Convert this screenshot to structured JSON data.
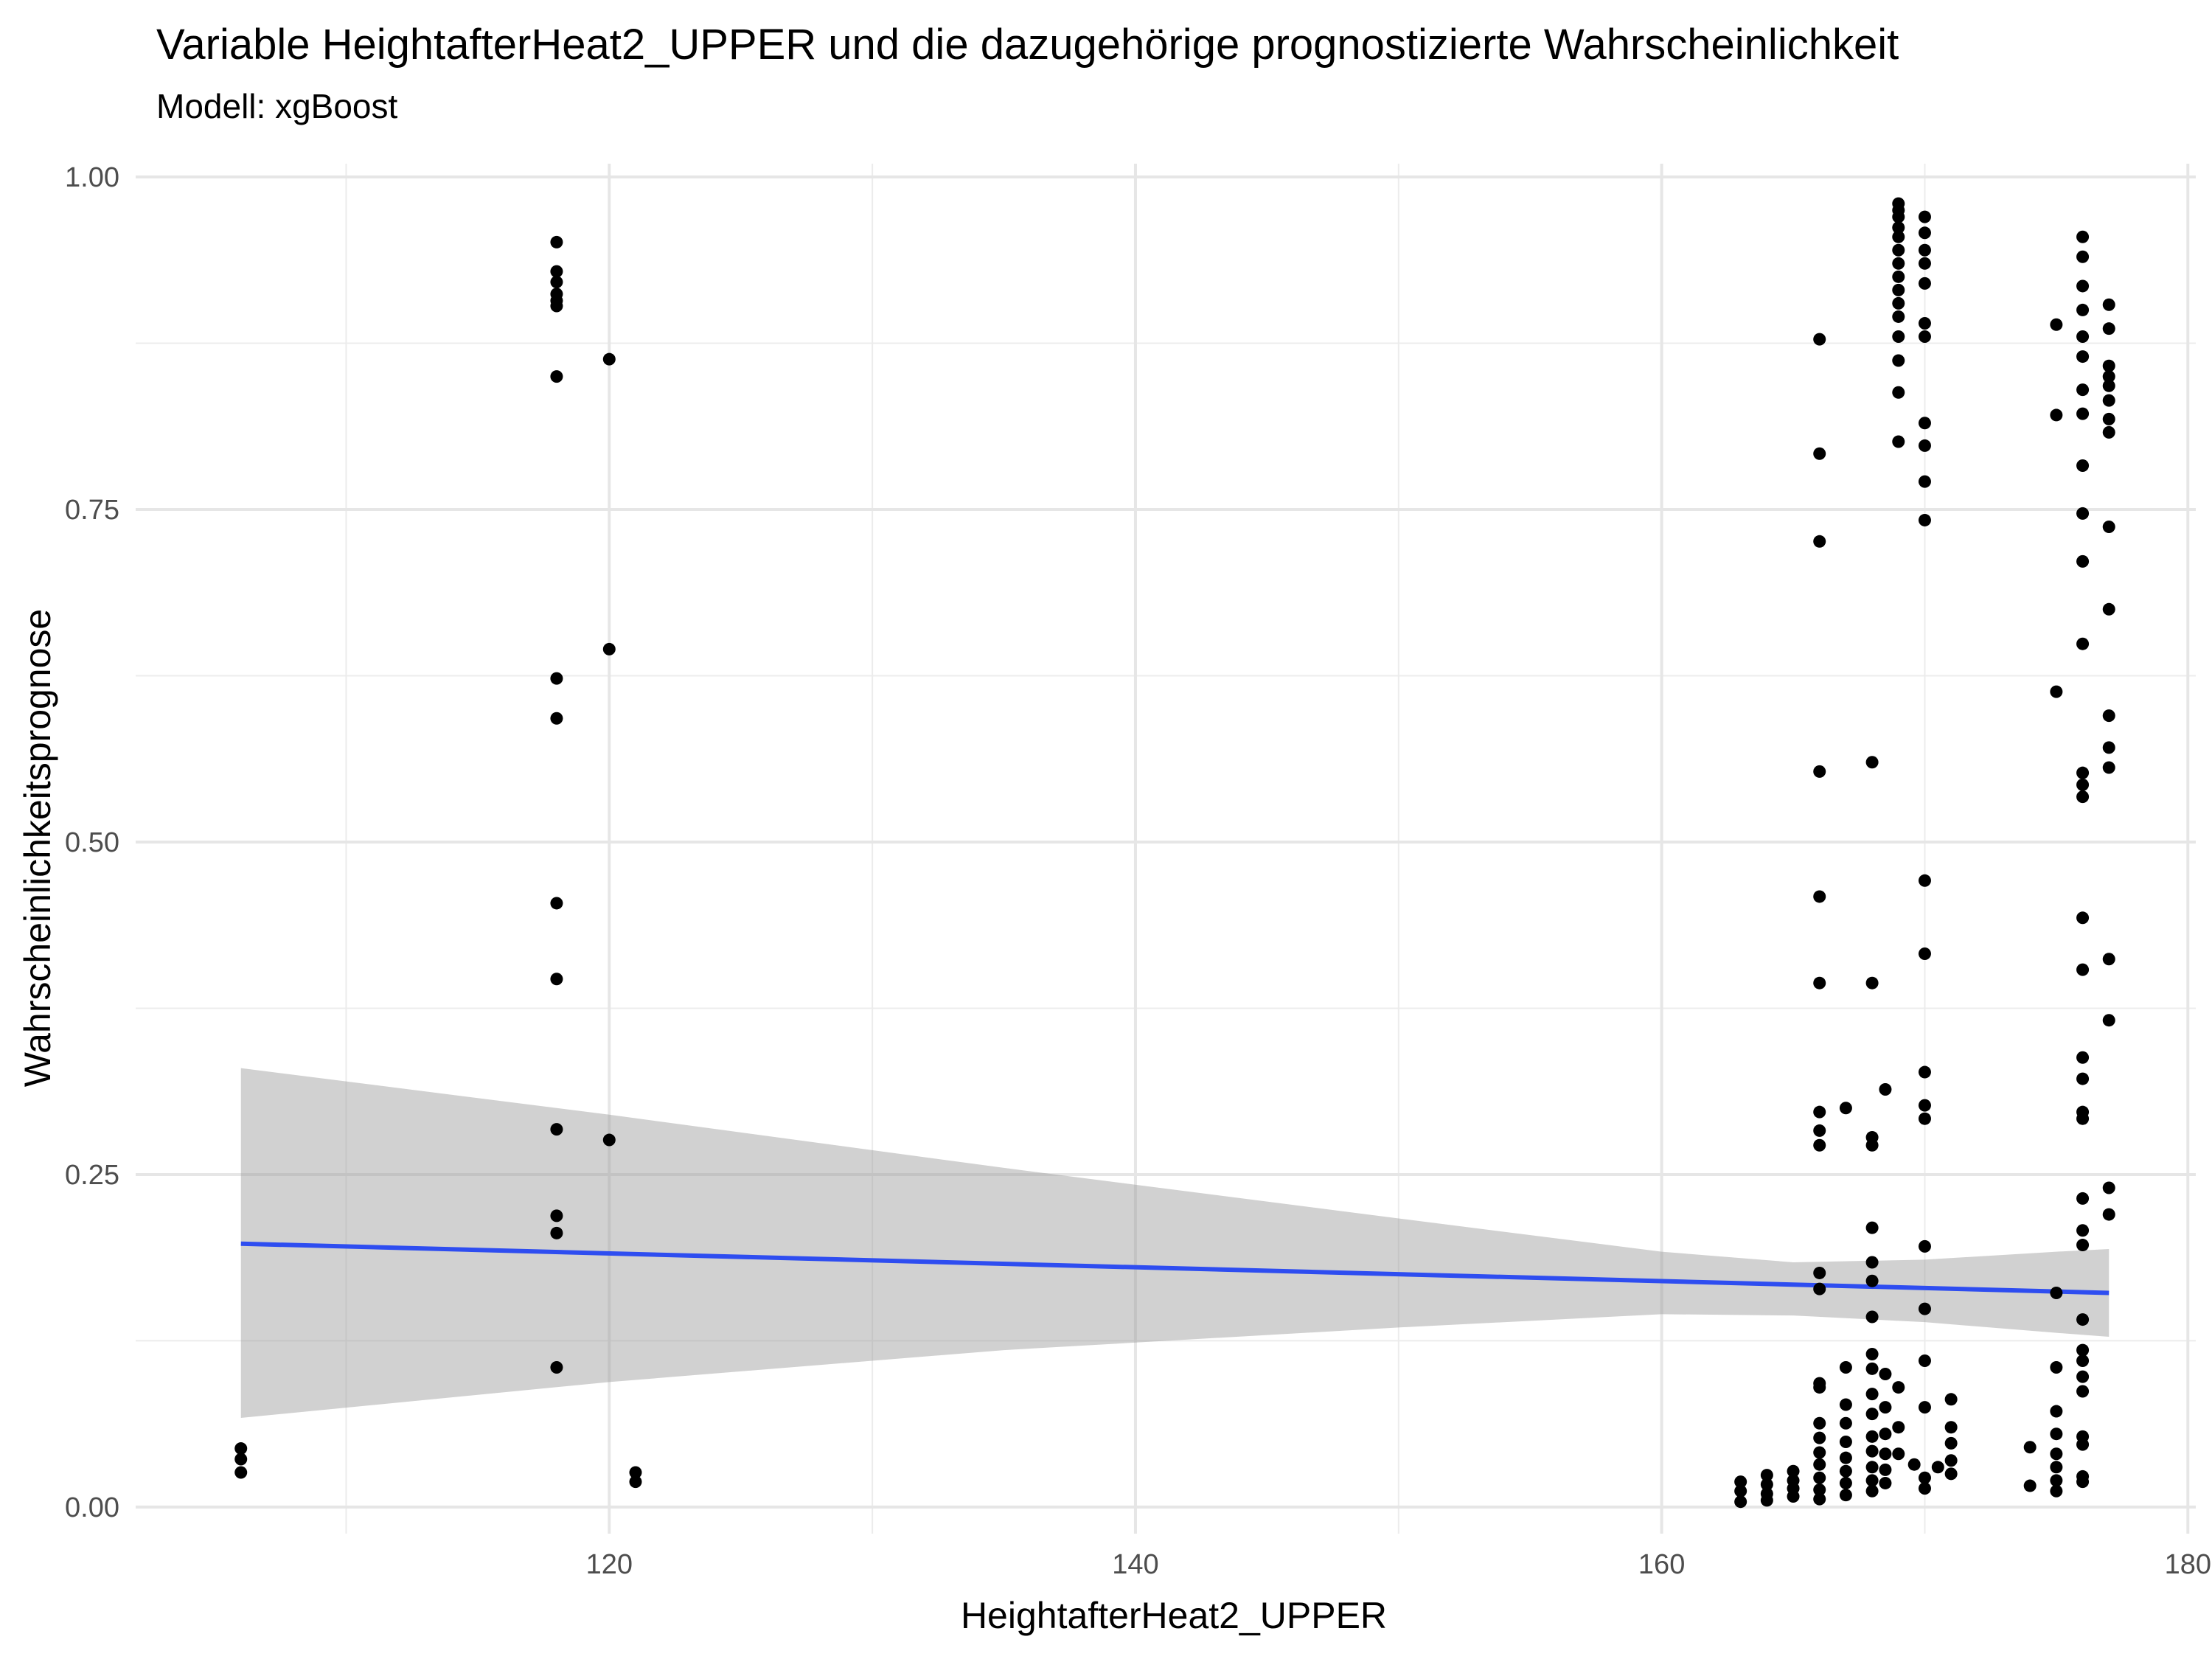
{
  "chart_data": {
    "type": "scatter",
    "title": "Variable HeightafterHeat2_UPPER und die dazugehörige prognostizierte Wahrscheinlichkeit",
    "subtitle": "Modell: xgBoost",
    "xlabel": "HeightafterHeat2_UPPER",
    "ylabel": "Wahrscheinlichkeitsprognose",
    "xlim": [
      102,
      180.3
    ],
    "ylim": [
      -0.02,
      1.01
    ],
    "x_ticks": [
      120,
      140,
      160,
      180
    ],
    "x_tick_labels": [
      "120",
      "140",
      "160",
      "180"
    ],
    "y_ticks": [
      0,
      0.25,
      0.5,
      0.75,
      1.0
    ],
    "y_tick_labels": [
      "0.00",
      "0.25",
      "0.50",
      "0.75",
      "1.00"
    ],
    "grid": true,
    "colors": {
      "points": "#000000",
      "trend": "#2e4df0",
      "ribbon": "#999999"
    },
    "points": [
      [
        106,
        0.044
      ],
      [
        106,
        0.036
      ],
      [
        106,
        0.026
      ],
      [
        118,
        0.951
      ],
      [
        118,
        0.929
      ],
      [
        118,
        0.921
      ],
      [
        118,
        0.912
      ],
      [
        118,
        0.907
      ],
      [
        118,
        0.903
      ],
      [
        118,
        0.85
      ],
      [
        118,
        0.623
      ],
      [
        118,
        0.593
      ],
      [
        118,
        0.454
      ],
      [
        118,
        0.397
      ],
      [
        118,
        0.284
      ],
      [
        118,
        0.219
      ],
      [
        118,
        0.206
      ],
      [
        118,
        0.105
      ],
      [
        120,
        0.863
      ],
      [
        120,
        0.645
      ],
      [
        120,
        0.276
      ],
      [
        121,
        0.026
      ],
      [
        121,
        0.019
      ],
      [
        163,
        0.019
      ],
      [
        163,
        0.012
      ],
      [
        163,
        0.004
      ],
      [
        164,
        0.024
      ],
      [
        164,
        0.017
      ],
      [
        164,
        0.01
      ],
      [
        164,
        0.005
      ],
      [
        165,
        0.027
      ],
      [
        165,
        0.02
      ],
      [
        165,
        0.014
      ],
      [
        165,
        0.008
      ],
      [
        166,
        0.878
      ],
      [
        166,
        0.792
      ],
      [
        166,
        0.726
      ],
      [
        166,
        0.553
      ],
      [
        166,
        0.459
      ],
      [
        166,
        0.394
      ],
      [
        166,
        0.297
      ],
      [
        166,
        0.283
      ],
      [
        166,
        0.272
      ],
      [
        166,
        0.176
      ],
      [
        166,
        0.164
      ],
      [
        166,
        0.093
      ],
      [
        166,
        0.09
      ],
      [
        166,
        0.063
      ],
      [
        166,
        0.052
      ],
      [
        166,
        0.041
      ],
      [
        166,
        0.032
      ],
      [
        166,
        0.022
      ],
      [
        166,
        0.013
      ],
      [
        166,
        0.006
      ],
      [
        167,
        0.3
      ],
      [
        167,
        0.105
      ],
      [
        167,
        0.077
      ],
      [
        167,
        0.063
      ],
      [
        167,
        0.049
      ],
      [
        167,
        0.037
      ],
      [
        167,
        0.027
      ],
      [
        167,
        0.018
      ],
      [
        167,
        0.009
      ],
      [
        168,
        0.56
      ],
      [
        168,
        0.394
      ],
      [
        168,
        0.278
      ],
      [
        168,
        0.272
      ],
      [
        168,
        0.21
      ],
      [
        168,
        0.184
      ],
      [
        168,
        0.17
      ],
      [
        168,
        0.143
      ],
      [
        168,
        0.115
      ],
      [
        168,
        0.104
      ],
      [
        168,
        0.085
      ],
      [
        168,
        0.07
      ],
      [
        168,
        0.053
      ],
      [
        168,
        0.042
      ],
      [
        168,
        0.03
      ],
      [
        168,
        0.02
      ],
      [
        168,
        0.012
      ],
      [
        168.5,
        0.314
      ],
      [
        168.5,
        0.1
      ],
      [
        168.5,
        0.075
      ],
      [
        168.5,
        0.055
      ],
      [
        168.5,
        0.04
      ],
      [
        168.5,
        0.028
      ],
      [
        168.5,
        0.018
      ],
      [
        169,
        0.98
      ],
      [
        169,
        0.975
      ],
      [
        169,
        0.97
      ],
      [
        169,
        0.962
      ],
      [
        169,
        0.955
      ],
      [
        169,
        0.945
      ],
      [
        169,
        0.935
      ],
      [
        169,
        0.925
      ],
      [
        169,
        0.915
      ],
      [
        169,
        0.905
      ],
      [
        169,
        0.895
      ],
      [
        169,
        0.88
      ],
      [
        169,
        0.862
      ],
      [
        169,
        0.838
      ],
      [
        169,
        0.801
      ],
      [
        169,
        0.09
      ],
      [
        169,
        0.06
      ],
      [
        169,
        0.04
      ],
      [
        169.6,
        0.032
      ],
      [
        170,
        0.97
      ],
      [
        170,
        0.958
      ],
      [
        170,
        0.945
      ],
      [
        170,
        0.935
      ],
      [
        170,
        0.92
      ],
      [
        170,
        0.89
      ],
      [
        170,
        0.88
      ],
      [
        170,
        0.815
      ],
      [
        170,
        0.798
      ],
      [
        170,
        0.771
      ],
      [
        170,
        0.742
      ],
      [
        170,
        0.471
      ],
      [
        170,
        0.416
      ],
      [
        170,
        0.327
      ],
      [
        170,
        0.302
      ],
      [
        170,
        0.292
      ],
      [
        170,
        0.196
      ],
      [
        170,
        0.149
      ],
      [
        170,
        0.11
      ],
      [
        170,
        0.075
      ],
      [
        170,
        0.022
      ],
      [
        170,
        0.014
      ],
      [
        170.5,
        0.03
      ],
      [
        171,
        0.081
      ],
      [
        171,
        0.06
      ],
      [
        171,
        0.048
      ],
      [
        171,
        0.035
      ],
      [
        171,
        0.025
      ],
      [
        174,
        0.045
      ],
      [
        174,
        0.016
      ],
      [
        175,
        0.889
      ],
      [
        175,
        0.821
      ],
      [
        175,
        0.613
      ],
      [
        175,
        0.161
      ],
      [
        175,
        0.105
      ],
      [
        175,
        0.072
      ],
      [
        175,
        0.055
      ],
      [
        175,
        0.04
      ],
      [
        175,
        0.03
      ],
      [
        175,
        0.02
      ],
      [
        175,
        0.012
      ],
      [
        176,
        0.955
      ],
      [
        176,
        0.94
      ],
      [
        176,
        0.918
      ],
      [
        176,
        0.9
      ],
      [
        176,
        0.88
      ],
      [
        176,
        0.865
      ],
      [
        176,
        0.84
      ],
      [
        176,
        0.822
      ],
      [
        176,
        0.783
      ],
      [
        176,
        0.747
      ],
      [
        176,
        0.711
      ],
      [
        176,
        0.649
      ],
      [
        176,
        0.552
      ],
      [
        176,
        0.543
      ],
      [
        176,
        0.534
      ],
      [
        176,
        0.443
      ],
      [
        176,
        0.404
      ],
      [
        176,
        0.338
      ],
      [
        176,
        0.322
      ],
      [
        176,
        0.297
      ],
      [
        176,
        0.292
      ],
      [
        176,
        0.232
      ],
      [
        176,
        0.208
      ],
      [
        176,
        0.197
      ],
      [
        176,
        0.141
      ],
      [
        176,
        0.118
      ],
      [
        176,
        0.11
      ],
      [
        176,
        0.098
      ],
      [
        176,
        0.087
      ],
      [
        176,
        0.053
      ],
      [
        176,
        0.047
      ],
      [
        176,
        0.023
      ],
      [
        176,
        0.019
      ],
      [
        177,
        0.904
      ],
      [
        177,
        0.886
      ],
      [
        177,
        0.858
      ],
      [
        177,
        0.85
      ],
      [
        177,
        0.843
      ],
      [
        177,
        0.832
      ],
      [
        177,
        0.818
      ],
      [
        177,
        0.808
      ],
      [
        177,
        0.737
      ],
      [
        177,
        0.675
      ],
      [
        177,
        0.595
      ],
      [
        177,
        0.571
      ],
      [
        177,
        0.556
      ],
      [
        177,
        0.412
      ],
      [
        177,
        0.366
      ],
      [
        177,
        0.24
      ],
      [
        177,
        0.22
      ]
    ],
    "trend": {
      "x": [
        106,
        177
      ],
      "y": [
        0.198,
        0.161
      ]
    },
    "ribbon": [
      {
        "x": 106,
        "lo": 0.067,
        "hi": 0.33
      },
      {
        "x": 120,
        "lo": 0.094,
        "hi": 0.295
      },
      {
        "x": 135,
        "lo": 0.118,
        "hi": 0.255
      },
      {
        "x": 150,
        "lo": 0.135,
        "hi": 0.217
      },
      {
        "x": 160,
        "lo": 0.145,
        "hi": 0.192
      },
      {
        "x": 165,
        "lo": 0.144,
        "hi": 0.184
      },
      {
        "x": 170,
        "lo": 0.139,
        "hi": 0.186
      },
      {
        "x": 175,
        "lo": 0.131,
        "hi": 0.192
      },
      {
        "x": 177,
        "lo": 0.128,
        "hi": 0.194
      }
    ]
  }
}
